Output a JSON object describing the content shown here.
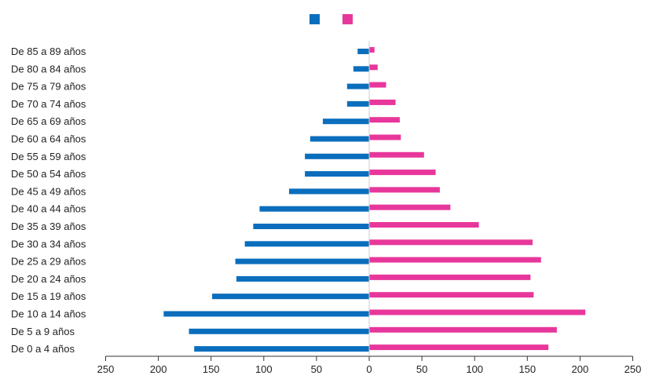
{
  "chart_data": {
    "type": "bar",
    "orientation": "horizontal",
    "layout": "population-pyramid",
    "categories": [
      "De 85 a 89 años",
      "De 80 a 84 años",
      "De 75 a 79 años",
      "De 70 a 74 años",
      "De 65 a 69 años",
      "De 60 a 64 años",
      "De 55 a 59 años",
      "De 50 a 54 años",
      "De 45 a 49 años",
      "De 40 a 44 años",
      "De 35 a 39 años",
      "De 30 a 34 años",
      "De 25 a 29 años",
      "De 20 a 24 años",
      "De 15 a 19 años",
      "De 10 a 14 años",
      "De 5 a 9 años",
      "De 0 a 4 años"
    ],
    "series": [
      {
        "side": "left",
        "color": "#0a6ebd",
        "values": [
          11,
          15,
          21,
          21,
          44,
          56,
          61,
          61,
          76,
          104,
          110,
          118,
          127,
          126,
          149,
          195,
          171,
          166
        ]
      },
      {
        "side": "right",
        "color": "#e8379b",
        "values": [
          5,
          8,
          16,
          25,
          29,
          30,
          52,
          63,
          67,
          77,
          104,
          155,
          163,
          153,
          156,
          205,
          178,
          170
        ]
      }
    ],
    "x_ticks": [
      250,
      200,
      150,
      100,
      50,
      0,
      50,
      100,
      150,
      200,
      250
    ],
    "xlim": [
      -250,
      250
    ],
    "legend_position": "top-center",
    "grid": false
  }
}
